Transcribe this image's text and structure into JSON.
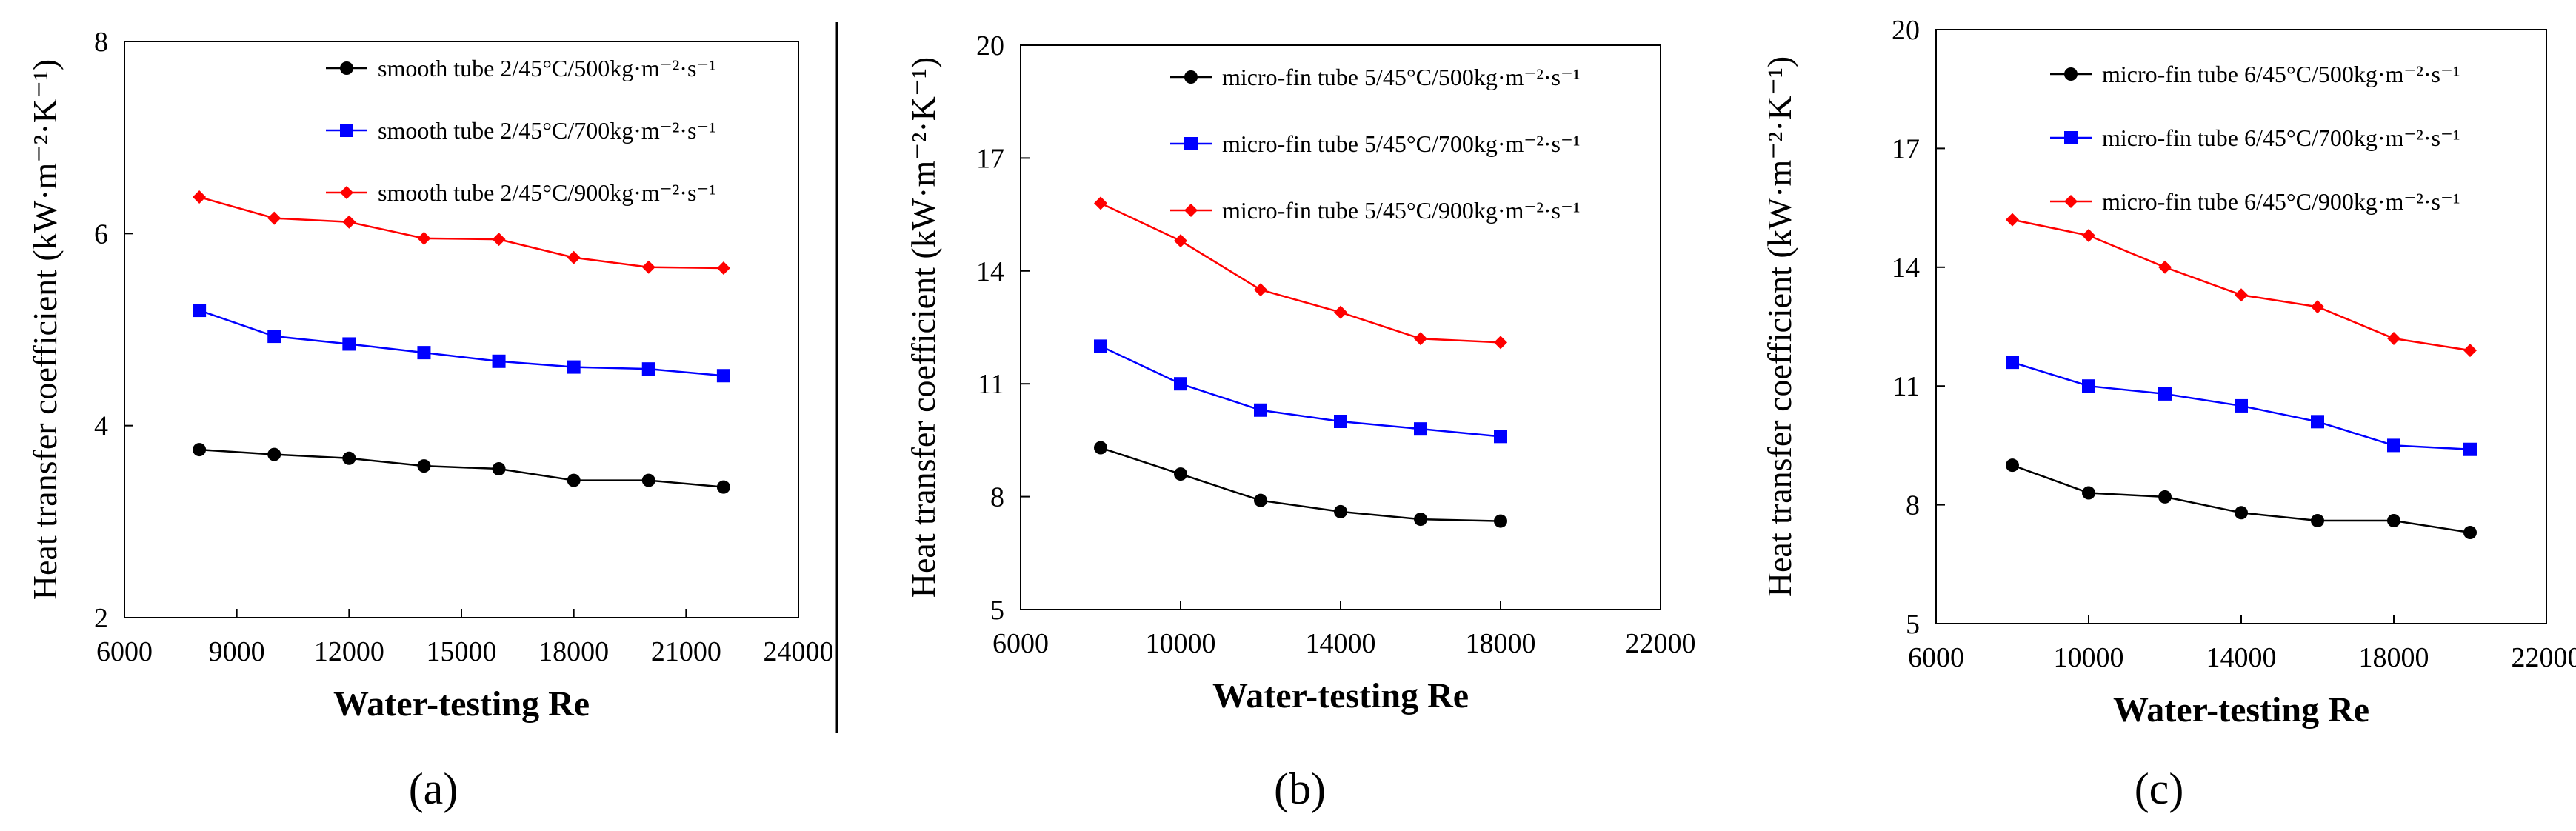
{
  "colors": {
    "black_series": "#000000",
    "blue_series": "#0000ff",
    "red_series": "#ff0000"
  },
  "chart_data": [
    {
      "type": "line",
      "caption": "(a)",
      "xlabel": "Water-testing Re",
      "ylabel": "Heat transfer coefficient (kW·m⁻²·K⁻¹)",
      "xlim": [
        6000,
        24000
      ],
      "ylim": [
        2,
        8
      ],
      "xticks": [
        "6000",
        "9000",
        "12000",
        "15000",
        "18000",
        "21000",
        "24000"
      ],
      "yticks": [
        "2",
        "4",
        "6",
        "8"
      ],
      "grid": false,
      "legend_position": "top-right",
      "x": [
        8000,
        10000,
        12000,
        14000,
        16000,
        18000,
        20000,
        22000
      ],
      "series": [
        {
          "name": "smooth tube 2/45°C/500kg·m⁻²·s⁻¹",
          "color": "#000000",
          "marker": "circle",
          "values": [
            3.75,
            3.7,
            3.66,
            3.58,
            3.55,
            3.43,
            3.43,
            3.36
          ]
        },
        {
          "name": "smooth tube 2/45°C/700kg·m⁻²·s⁻¹",
          "color": "#0000ff",
          "marker": "square",
          "values": [
            5.2,
            4.93,
            4.85,
            4.76,
            4.67,
            4.61,
            4.59,
            4.52
          ]
        },
        {
          "name": "smooth tube 2/45°C/900kg·m⁻²·s⁻¹",
          "color": "#ff0000",
          "marker": "diamond",
          "values": [
            6.38,
            6.16,
            6.12,
            5.95,
            5.94,
            5.75,
            5.65,
            5.64
          ]
        }
      ]
    },
    {
      "type": "line",
      "caption": "(b)",
      "xlabel": "Water-testing Re",
      "ylabel": "Heat transfer coefficient (kW·m⁻²·K⁻¹)",
      "xlim": [
        6000,
        22000
      ],
      "ylim": [
        5,
        20
      ],
      "xticks": [
        "6000",
        "10000",
        "14000",
        "18000",
        "22000"
      ],
      "yticks": [
        "5",
        "8",
        "11",
        "14",
        "17",
        "20"
      ],
      "grid": false,
      "legend_position": "top-right",
      "x": [
        8000,
        10000,
        12000,
        14000,
        16000,
        18000
      ],
      "series": [
        {
          "name": "micro-fin tube 5/45°C/500kg·m⁻²·s⁻¹",
          "color": "#000000",
          "marker": "circle",
          "values": [
            9.3,
            8.6,
            7.9,
            7.6,
            7.4,
            7.35
          ]
        },
        {
          "name": "micro-fin tube 5/45°C/700kg·m⁻²·s⁻¹",
          "color": "#0000ff",
          "marker": "square",
          "values": [
            12.0,
            11.0,
            10.3,
            10.0,
            9.8,
            9.6
          ]
        },
        {
          "name": "micro-fin tube 5/45°C/900kg·m⁻²·s⁻¹",
          "color": "#ff0000",
          "marker": "diamond",
          "values": [
            15.8,
            14.8,
            13.5,
            12.9,
            12.2,
            12.1
          ]
        }
      ]
    },
    {
      "type": "line",
      "caption": "(c)",
      "xlabel": "Water-testing Re",
      "ylabel": "Heat transfer coefficient (kW·m⁻²·K⁻¹)",
      "xlim": [
        6000,
        22000
      ],
      "ylim": [
        5,
        20
      ],
      "xticks": [
        "6000",
        "10000",
        "14000",
        "18000",
        "22000"
      ],
      "yticks": [
        "5",
        "8",
        "11",
        "14",
        "17",
        "20"
      ],
      "grid": false,
      "legend_position": "top-right",
      "x": [
        8000,
        10000,
        12000,
        14000,
        16000,
        18000,
        20000
      ],
      "series": [
        {
          "name": "micro-fin tube 6/45°C/500kg·m⁻²·s⁻¹",
          "color": "#000000",
          "marker": "circle",
          "values": [
            9.0,
            8.3,
            8.2,
            7.8,
            7.6,
            7.6,
            7.3
          ]
        },
        {
          "name": "micro-fin tube 6/45°C/700kg·m⁻²·s⁻¹",
          "color": "#0000ff",
          "marker": "square",
          "values": [
            11.6,
            11.0,
            10.8,
            10.5,
            10.1,
            9.5,
            9.4
          ]
        },
        {
          "name": "micro-fin tube 6/45°C/900kg·m⁻²·s⁻¹",
          "color": "#ff0000",
          "marker": "diamond",
          "values": [
            15.2,
            14.8,
            14.0,
            13.3,
            13.0,
            12.2,
            11.9
          ]
        }
      ]
    }
  ]
}
